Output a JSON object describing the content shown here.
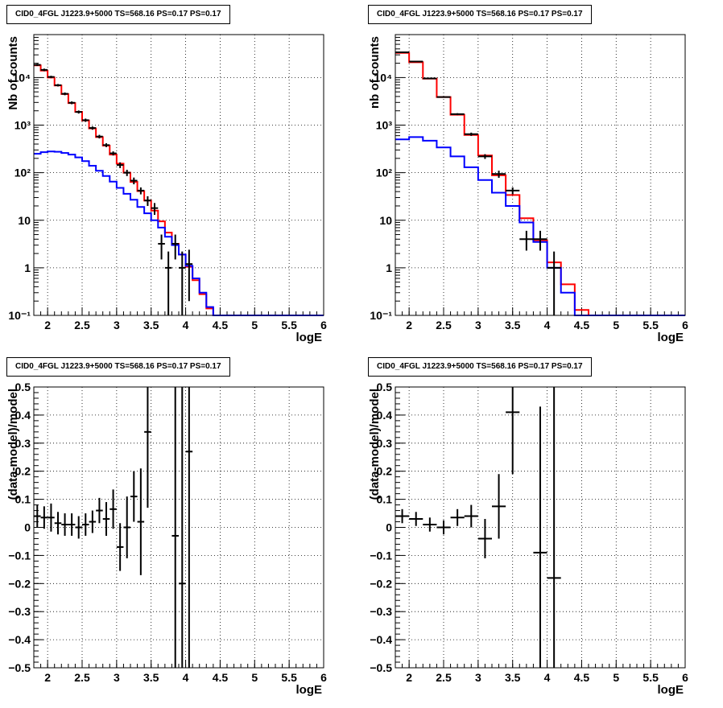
{
  "chart_data": [
    {
      "type": "line",
      "title": "CID0_4FGL J1223.9+5000 TS=568.16 PS=0.17 PS=0.17",
      "xlabel": "logE",
      "ylabel": "Nb of counts",
      "xlim": [
        1.8,
        6.0
      ],
      "ylim": [
        0.1,
        80000
      ],
      "yscale": "log",
      "grid": true,
      "xticks": [
        "2",
        "2.5",
        "3",
        "3.5",
        "4",
        "4.5",
        "5",
        "5.5",
        "6"
      ],
      "yticks": [
        "10⁻¹",
        "1",
        "10",
        "10²",
        "10³",
        "10⁴"
      ],
      "bin_edges": [
        1.8,
        1.9,
        2.0,
        2.1,
        2.2,
        2.3,
        2.4,
        2.5,
        2.6,
        2.7,
        2.8,
        2.9,
        3.0,
        3.1,
        3.2,
        3.3,
        3.4,
        3.5,
        3.6,
        3.7,
        3.8,
        3.9,
        4.0,
        4.1,
        4.2,
        4.3,
        4.4,
        4.5,
        4.6,
        4.7,
        4.8,
        4.9,
        5.0,
        5.1,
        5.2,
        5.3,
        5.4,
        5.5,
        5.6,
        5.7,
        5.8,
        5.9,
        6.0
      ],
      "series": [
        {
          "color": "#ff0000",
          "style": "step",
          "values": [
            18000,
            14000,
            10000,
            6800,
            4500,
            2900,
            1900,
            1250,
            850,
            560,
            370,
            240,
            155,
            100,
            64,
            41,
            26,
            16,
            9.5,
            5.5,
            3.2,
            1.9,
            1.05,
            0.55,
            0.28,
            0.14,
            0.1,
            0.1,
            0.1,
            0.1,
            0.1,
            0.1,
            0.1,
            0.1,
            0.1,
            0.1,
            0.1,
            0.1,
            0.1,
            0.1,
            0.1,
            0.1
          ]
        },
        {
          "color": "#0000ff",
          "style": "step",
          "values": [
            250,
            270,
            280,
            275,
            260,
            240,
            210,
            175,
            140,
            110,
            85,
            65,
            48,
            36,
            27,
            19,
            14,
            10,
            7,
            4.5,
            3,
            1.9,
            1.1,
            0.6,
            0.3,
            0.15,
            0.1,
            0.1,
            0.1,
            0.1,
            0.1,
            0.1,
            0.1,
            0.1,
            0.1,
            0.1,
            0.1,
            0.1,
            0.1,
            0.1,
            0.1,
            0.1
          ]
        },
        {
          "color": "#000000",
          "style": "points",
          "points": [
            {
              "x": 1.85,
              "y": 18500,
              "lo": 17500,
              "hi": 19500
            },
            {
              "x": 1.95,
              "y": 14500,
              "lo": 13600,
              "hi": 15400
            },
            {
              "x": 2.05,
              "y": 10300,
              "lo": 9700,
              "hi": 10900
            },
            {
              "x": 2.15,
              "y": 6900,
              "lo": 6500,
              "hi": 7300
            },
            {
              "x": 2.25,
              "y": 4550,
              "lo": 4250,
              "hi": 4850
            },
            {
              "x": 2.35,
              "y": 2950,
              "lo": 2750,
              "hi": 3150
            },
            {
              "x": 2.45,
              "y": 1890,
              "lo": 1750,
              "hi": 2030
            },
            {
              "x": 2.55,
              "y": 1270,
              "lo": 1170,
              "hi": 1370
            },
            {
              "x": 2.65,
              "y": 870,
              "lo": 800,
              "hi": 940
            },
            {
              "x": 2.75,
              "y": 575,
              "lo": 525,
              "hi": 625
            },
            {
              "x": 2.85,
              "y": 380,
              "lo": 345,
              "hi": 415
            },
            {
              "x": 2.95,
              "y": 255,
              "lo": 230,
              "hi": 280
            },
            {
              "x": 3.05,
              "y": 145,
              "lo": 125,
              "hi": 165
            },
            {
              "x": 3.15,
              "y": 100,
              "lo": 85,
              "hi": 115
            },
            {
              "x": 3.25,
              "y": 68,
              "lo": 57,
              "hi": 79
            },
            {
              "x": 3.35,
              "y": 42,
              "lo": 35,
              "hi": 49
            },
            {
              "x": 3.45,
              "y": 26,
              "lo": 20,
              "hi": 32
            },
            {
              "x": 3.55,
              "y": 18,
              "lo": 13,
              "hi": 23
            },
            {
              "x": 3.65,
              "y": 3.2,
              "lo": 1.5,
              "hi": 5
            },
            {
              "x": 3.75,
              "y": 1.0,
              "lo": 0.1,
              "hi": 2.2
            },
            {
              "x": 3.85,
              "y": 3.2,
              "lo": 1.5,
              "hi": 5
            },
            {
              "x": 3.95,
              "y": 1.0,
              "lo": 0.1,
              "hi": 2.2
            },
            {
              "x": 4.05,
              "y": 1.2,
              "lo": 0.2,
              "hi": 2.4
            }
          ]
        }
      ]
    },
    {
      "type": "line",
      "title": "CID0_4FGL J1223.9+5000 TS=568.16 PS=0.17 PS=0.17",
      "xlabel": "logE",
      "ylabel": "nb of counts",
      "xlim": [
        1.8,
        6.0
      ],
      "ylim": [
        0.1,
        80000
      ],
      "yscale": "log",
      "grid": true,
      "xticks": [
        "2",
        "2.5",
        "3",
        "3.5",
        "4",
        "4.5",
        "5",
        "5.5",
        "6"
      ],
      "yticks": [
        "10⁻¹",
        "1",
        "10",
        "10²",
        "10³",
        "10⁴"
      ],
      "bin_edges": [
        1.8,
        2.0,
        2.2,
        2.4,
        2.6,
        2.8,
        3.0,
        3.2,
        3.4,
        3.6,
        3.8,
        4.0,
        4.2,
        4.4,
        4.6,
        4.8,
        5.0,
        5.2,
        5.4,
        5.6,
        5.8,
        6.0
      ],
      "series": [
        {
          "color": "#ff0000",
          "style": "step",
          "values": [
            33000,
            21000,
            9500,
            3900,
            1650,
            620,
            230,
            88,
            34,
            11,
            3.8,
            1.3,
            0.45,
            0.13,
            0.1,
            0.1,
            0.1,
            0.1,
            0.1,
            0.1,
            0.1
          ]
        },
        {
          "color": "#0000ff",
          "style": "step",
          "values": [
            500,
            560,
            470,
            340,
            220,
            130,
            70,
            38,
            20,
            9,
            3.5,
            1.0,
            0.3,
            0.1,
            0.1,
            0.1,
            0.1,
            0.1,
            0.1,
            0.1,
            0.1
          ]
        },
        {
          "color": "#000000",
          "style": "points",
          "points": [
            {
              "x": 1.9,
              "y": 34000,
              "lo": 33500,
              "hi": 34500
            },
            {
              "x": 2.1,
              "y": 21700,
              "lo": 21300,
              "hi": 22100
            },
            {
              "x": 2.3,
              "y": 9600,
              "lo": 9400,
              "hi": 9800
            },
            {
              "x": 2.5,
              "y": 3900,
              "lo": 3780,
              "hi": 4020
            },
            {
              "x": 2.7,
              "y": 1700,
              "lo": 1620,
              "hi": 1780
            },
            {
              "x": 2.9,
              "y": 645,
              "lo": 595,
              "hi": 695
            },
            {
              "x": 3.1,
              "y": 220,
              "lo": 195,
              "hi": 245
            },
            {
              "x": 3.3,
              "y": 94,
              "lo": 78,
              "hi": 110
            },
            {
              "x": 3.5,
              "y": 42,
              "lo": 35,
              "hi": 49
            },
            {
              "x": 3.7,
              "y": 4,
              "lo": 2.3,
              "hi": 6
            },
            {
              "x": 3.9,
              "y": 4,
              "lo": 2.3,
              "hi": 6
            },
            {
              "x": 4.1,
              "y": 1.0,
              "lo": 0.1,
              "hi": 2.2
            }
          ]
        }
      ]
    },
    {
      "type": "scatter",
      "title": "CID0_4FGL J1223.9+5000 TS=568.16 PS=0.17 PS=0.17",
      "xlabel": "logE",
      "ylabel": "(data-model)/model",
      "xlim": [
        1.8,
        6.0
      ],
      "ylim": [
        -0.5,
        0.5
      ],
      "grid": true,
      "xticks": [
        "2",
        "2.5",
        "3",
        "3.5",
        "4",
        "4.5",
        "5",
        "5.5",
        "6"
      ],
      "yticks": [
        "−0.5",
        "−0.4",
        "−0.3",
        "−0.2",
        "−0.1",
        "0",
        "0.1",
        "0.2",
        "0.3",
        "0.4",
        "0.5"
      ],
      "ytick_values": [
        -0.5,
        -0.4,
        -0.3,
        -0.2,
        -0.1,
        0,
        0.1,
        0.2,
        0.3,
        0.4,
        0.5
      ],
      "half_width": 0.05,
      "points": [
        {
          "x": 1.85,
          "y": 0.04,
          "err": 0.04
        },
        {
          "x": 1.95,
          "y": 0.035,
          "err": 0.04
        },
        {
          "x": 2.05,
          "y": 0.035,
          "err": 0.05
        },
        {
          "x": 2.15,
          "y": 0.015,
          "err": 0.04
        },
        {
          "x": 2.25,
          "y": 0.01,
          "err": 0.04
        },
        {
          "x": 2.35,
          "y": 0.01,
          "err": 0.04
        },
        {
          "x": 2.45,
          "y": 0.0,
          "err": 0.04
        },
        {
          "x": 2.55,
          "y": 0.01,
          "err": 0.04
        },
        {
          "x": 2.65,
          "y": 0.02,
          "err": 0.04
        },
        {
          "x": 2.75,
          "y": 0.06,
          "err": 0.045
        },
        {
          "x": 2.85,
          "y": 0.03,
          "err": 0.06
        },
        {
          "x": 2.95,
          "y": 0.065,
          "err": 0.07
        },
        {
          "x": 3.05,
          "y": -0.07,
          "err": 0.085
        },
        {
          "x": 3.15,
          "y": 0.0,
          "err": 0.11
        },
        {
          "x": 3.25,
          "y": 0.11,
          "err": 0.09
        },
        {
          "x": 3.35,
          "y": 0.02,
          "err": 0.19
        },
        {
          "x": 3.45,
          "y": 0.34,
          "err": 0.27
        },
        {
          "x": 3.85,
          "y": -0.03,
          "err": 0.7
        },
        {
          "x": 3.95,
          "y": -0.2,
          "err": 0.8
        },
        {
          "x": 4.05,
          "y": 0.27,
          "err": 0.9
        }
      ]
    },
    {
      "type": "scatter",
      "title": "CID0_4FGL J1223.9+5000 TS=568.16 PS=0.17 PS=0.17",
      "xlabel": "logE",
      "ylabel": "(data-model)/model",
      "xlim": [
        1.8,
        6.0
      ],
      "ylim": [
        -0.5,
        0.5
      ],
      "grid": true,
      "xticks": [
        "2",
        "2.5",
        "3",
        "3.5",
        "4",
        "4.5",
        "5",
        "5.5",
        "6"
      ],
      "yticks": [
        "−0.5",
        "−0.4",
        "−0.3",
        "−0.2",
        "−0.1",
        "0",
        "0.1",
        "0.2",
        "0.3",
        "0.4",
        "0.5"
      ],
      "ytick_values": [
        -0.5,
        -0.4,
        -0.3,
        -0.2,
        -0.1,
        0,
        0.1,
        0.2,
        0.3,
        0.4,
        0.5
      ],
      "half_width": 0.1,
      "points": [
        {
          "x": 1.9,
          "y": 0.04,
          "err": 0.025
        },
        {
          "x": 2.1,
          "y": 0.03,
          "err": 0.025
        },
        {
          "x": 2.3,
          "y": 0.01,
          "err": 0.025
        },
        {
          "x": 2.5,
          "y": 0.0,
          "err": 0.025
        },
        {
          "x": 2.7,
          "y": 0.035,
          "err": 0.03
        },
        {
          "x": 2.9,
          "y": 0.04,
          "err": 0.04
        },
        {
          "x": 3.1,
          "y": -0.04,
          "err": 0.07
        },
        {
          "x": 3.3,
          "y": 0.075,
          "err": 0.115
        },
        {
          "x": 3.5,
          "y": 0.41,
          "err": 0.22
        },
        {
          "x": 3.9,
          "y": -0.09,
          "err": 0.52
        },
        {
          "x": 4.1,
          "y": -0.18,
          "err": 0.7
        }
      ]
    }
  ]
}
